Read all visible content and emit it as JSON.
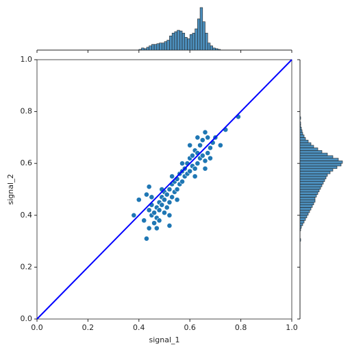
{
  "chart_data": [
    {
      "type": "scatter",
      "x_label": "signal_1",
      "y_label": "signal_2",
      "x": [
        0.38,
        0.4,
        0.42,
        0.43,
        0.44,
        0.44,
        0.45,
        0.45,
        0.46,
        0.46,
        0.47,
        0.47,
        0.48,
        0.48,
        0.48,
        0.49,
        0.49,
        0.5,
        0.5,
        0.5,
        0.51,
        0.51,
        0.52,
        0.52,
        0.52,
        0.53,
        0.53,
        0.54,
        0.54,
        0.55,
        0.55,
        0.55,
        0.56,
        0.56,
        0.57,
        0.57,
        0.58,
        0.58,
        0.59,
        0.59,
        0.6,
        0.6,
        0.61,
        0.61,
        0.62,
        0.62,
        0.63,
        0.63,
        0.63,
        0.64,
        0.64,
        0.65,
        0.65,
        0.66,
        0.66,
        0.67,
        0.67,
        0.68,
        0.69,
        0.7,
        0.72,
        0.74,
        0.79,
        0.44,
        0.43,
        0.47,
        0.52,
        0.62,
        0.66,
        0.49,
        0.45,
        0.57,
        0.6,
        0.68,
        0.53
      ],
      "values": [
        0.4,
        0.46,
        0.38,
        0.31,
        0.35,
        0.42,
        0.4,
        0.44,
        0.37,
        0.41,
        0.43,
        0.39,
        0.45,
        0.42,
        0.38,
        0.44,
        0.47,
        0.41,
        0.46,
        0.49,
        0.43,
        0.48,
        0.45,
        0.5,
        0.36,
        0.47,
        0.52,
        0.49,
        0.53,
        0.5,
        0.54,
        0.46,
        0.52,
        0.56,
        0.53,
        0.57,
        0.55,
        0.58,
        0.56,
        0.6,
        0.57,
        0.62,
        0.59,
        0.63,
        0.58,
        0.65,
        0.6,
        0.64,
        0.7,
        0.62,
        0.67,
        0.63,
        0.69,
        0.61,
        0.72,
        0.64,
        0.7,
        0.66,
        0.68,
        0.7,
        0.67,
        0.73,
        0.78,
        0.51,
        0.48,
        0.35,
        0.4,
        0.55,
        0.58,
        0.5,
        0.47,
        0.6,
        0.67,
        0.62,
        0.55
      ],
      "color": "#1f77b4",
      "line": {
        "x": [
          0,
          1
        ],
        "y": [
          0,
          1
        ],
        "color": "#0000ff"
      },
      "xlim": [
        0,
        1
      ],
      "ylim": [
        0,
        1
      ],
      "xticks": [
        {
          "value": 0,
          "label": "0.0"
        },
        0.2,
        0.4,
        0.6,
        0.8,
        {
          "value": 1,
          "label": "1.0"
        }
      ],
      "yticks": [
        {
          "value": 0,
          "label": "0.0"
        },
        0.2,
        0.4,
        0.6,
        0.8,
        {
          "value": 1,
          "label": "1.0"
        }
      ]
    },
    {
      "type": "histogram",
      "orientation": "vertical",
      "color": "#4c8fbd",
      "bins": [
        0.4,
        0.41,
        0.42,
        0.43,
        0.44,
        0.45,
        0.46,
        0.47,
        0.48,
        0.49,
        0.5,
        0.51,
        0.52,
        0.53,
        0.54,
        0.55,
        0.56,
        0.57,
        0.58,
        0.59,
        0.6,
        0.61,
        0.62,
        0.63,
        0.64,
        0.65,
        0.66,
        0.67,
        0.68,
        0.69,
        0.7,
        0.71,
        0.72
      ],
      "counts": [
        1,
        3,
        2,
        4,
        6,
        8,
        8,
        9,
        10,
        10,
        12,
        14,
        20,
        24,
        26,
        28,
        27,
        24,
        18,
        16,
        22,
        24,
        30,
        44,
        60,
        40,
        24,
        10,
        6,
        3,
        2,
        1
      ]
    },
    {
      "type": "histogram",
      "orientation": "horizontal",
      "color": "#4c8fbd",
      "bins": [
        0.3,
        0.31,
        0.32,
        0.33,
        0.34,
        0.35,
        0.36,
        0.37,
        0.38,
        0.39,
        0.4,
        0.41,
        0.42,
        0.43,
        0.44,
        0.45,
        0.46,
        0.47,
        0.48,
        0.49,
        0.5,
        0.51,
        0.52,
        0.53,
        0.54,
        0.55,
        0.56,
        0.57,
        0.58,
        0.59,
        0.6,
        0.61,
        0.62,
        0.63,
        0.64,
        0.65,
        0.66,
        0.67,
        0.68,
        0.69,
        0.7,
        0.71,
        0.72,
        0.73,
        0.74,
        0.75,
        0.76,
        0.77,
        0.78
      ],
      "counts": [
        1,
        0,
        0,
        0,
        1,
        2,
        4,
        6,
        8,
        10,
        12,
        14,
        16,
        18,
        20,
        22,
        22,
        24,
        26,
        28,
        30,
        32,
        34,
        36,
        38,
        40,
        44,
        48,
        54,
        60,
        62,
        56,
        48,
        40,
        32,
        26,
        20,
        16,
        12,
        8,
        6,
        4,
        3,
        2,
        1,
        1,
        0,
        1
      ]
    }
  ]
}
